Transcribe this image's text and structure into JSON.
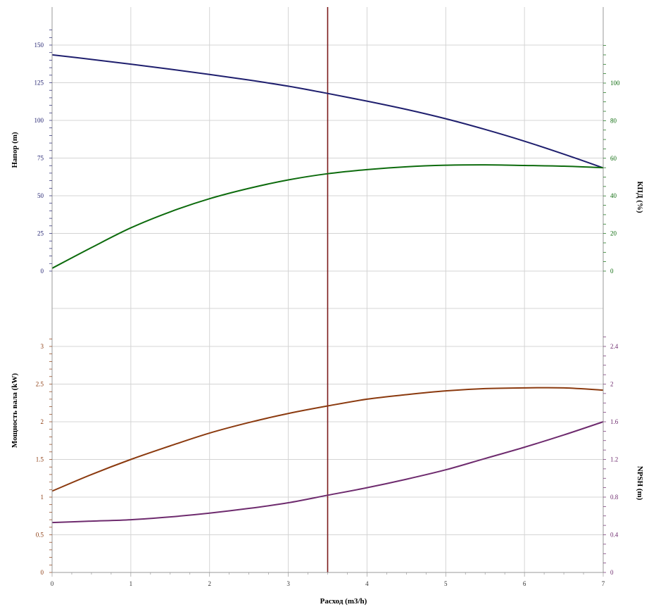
{
  "colors": {
    "head": "#1f1f6e",
    "efficiency": "#0d6b0d",
    "power": "#8b3a0f",
    "npsh": "#6e2b6e",
    "marker": "#7b1a1a",
    "grid": "#d4d4d4",
    "frame": "#9a9a9a"
  },
  "chart_data": [
    {
      "type": "line",
      "panel": "upper",
      "xlabel": "Расход (m3/h)",
      "xlim": [
        0,
        7
      ],
      "x_ticks": [
        "0",
        "1",
        "2",
        "3",
        "4",
        "5",
        "6",
        "7"
      ],
      "operating_point_x": 3.5,
      "ylabel_left": "Напор (m)",
      "ylim_left": [
        0,
        150
      ],
      "y_ticks_left": [
        "0",
        "25",
        "50",
        "75",
        "100",
        "125",
        "150"
      ],
      "ylabel_right": "КПД (%)",
      "ylim_right": [
        0,
        100
      ],
      "y_ticks_right": [
        "0",
        "20",
        "40",
        "60",
        "80",
        "100"
      ],
      "series": [
        {
          "axis": "left",
          "color_key": "head",
          "x": [
            0,
            0.5,
            1,
            1.5,
            2,
            2.5,
            3,
            3.5,
            4,
            4.5,
            5,
            5.5,
            6,
            6.5,
            7
          ],
          "values": [
            143.5,
            140.5,
            137.3,
            134,
            130.5,
            126.8,
            122.7,
            117.9,
            112.8,
            107.3,
            101.1,
            94,
            86.2,
            77.6,
            68.5
          ]
        },
        {
          "axis": "right",
          "color_key": "efficiency",
          "x": [
            0,
            0.5,
            1,
            1.5,
            2,
            2.5,
            3,
            3.5,
            4,
            4.5,
            5,
            5.5,
            6,
            6.5,
            7
          ],
          "values": [
            1.5,
            12.5,
            23,
            31.5,
            38.5,
            44,
            48.5,
            51.8,
            54,
            55.5,
            56.3,
            56.5,
            56.2,
            55.8,
            55
          ]
        }
      ]
    },
    {
      "type": "line",
      "panel": "lower",
      "xlabel": "Расход (m3/h)",
      "xlim": [
        0,
        7
      ],
      "x_ticks": [
        "0",
        "1",
        "2",
        "3",
        "4",
        "5",
        "6",
        "7"
      ],
      "operating_point_x": 3.5,
      "ylabel_left": "Мощность вала (kW)",
      "ylim_left": [
        0,
        3
      ],
      "y_ticks_left": [
        "0",
        "0.5",
        "1",
        "1.5",
        "2",
        "2.5",
        "3"
      ],
      "ylabel_right": "NPSH (m)",
      "ylim_right": [
        0,
        2.4
      ],
      "y_ticks_right": [
        "0",
        "0.4",
        "0.8",
        "1.2",
        "1.6",
        "2",
        "2.4"
      ],
      "series": [
        {
          "axis": "left",
          "color_key": "power",
          "x": [
            0,
            0.5,
            1,
            1.5,
            2,
            2.5,
            3,
            3.5,
            4,
            4.5,
            5,
            5.5,
            6,
            6.5,
            7
          ],
          "values": [
            1.08,
            1.3,
            1.5,
            1.68,
            1.85,
            1.99,
            2.11,
            2.21,
            2.3,
            2.36,
            2.41,
            2.44,
            2.45,
            2.45,
            2.42
          ]
        },
        {
          "axis": "right",
          "color_key": "npsh",
          "x": [
            0,
            0.5,
            1,
            1.5,
            2,
            2.5,
            3,
            3.5,
            4,
            4.5,
            5,
            5.5,
            6,
            6.5,
            7
          ],
          "values": [
            0.53,
            0.545,
            0.56,
            0.59,
            0.63,
            0.68,
            0.74,
            0.82,
            0.9,
            0.99,
            1.09,
            1.21,
            1.33,
            1.46,
            1.6
          ]
        }
      ]
    }
  ]
}
